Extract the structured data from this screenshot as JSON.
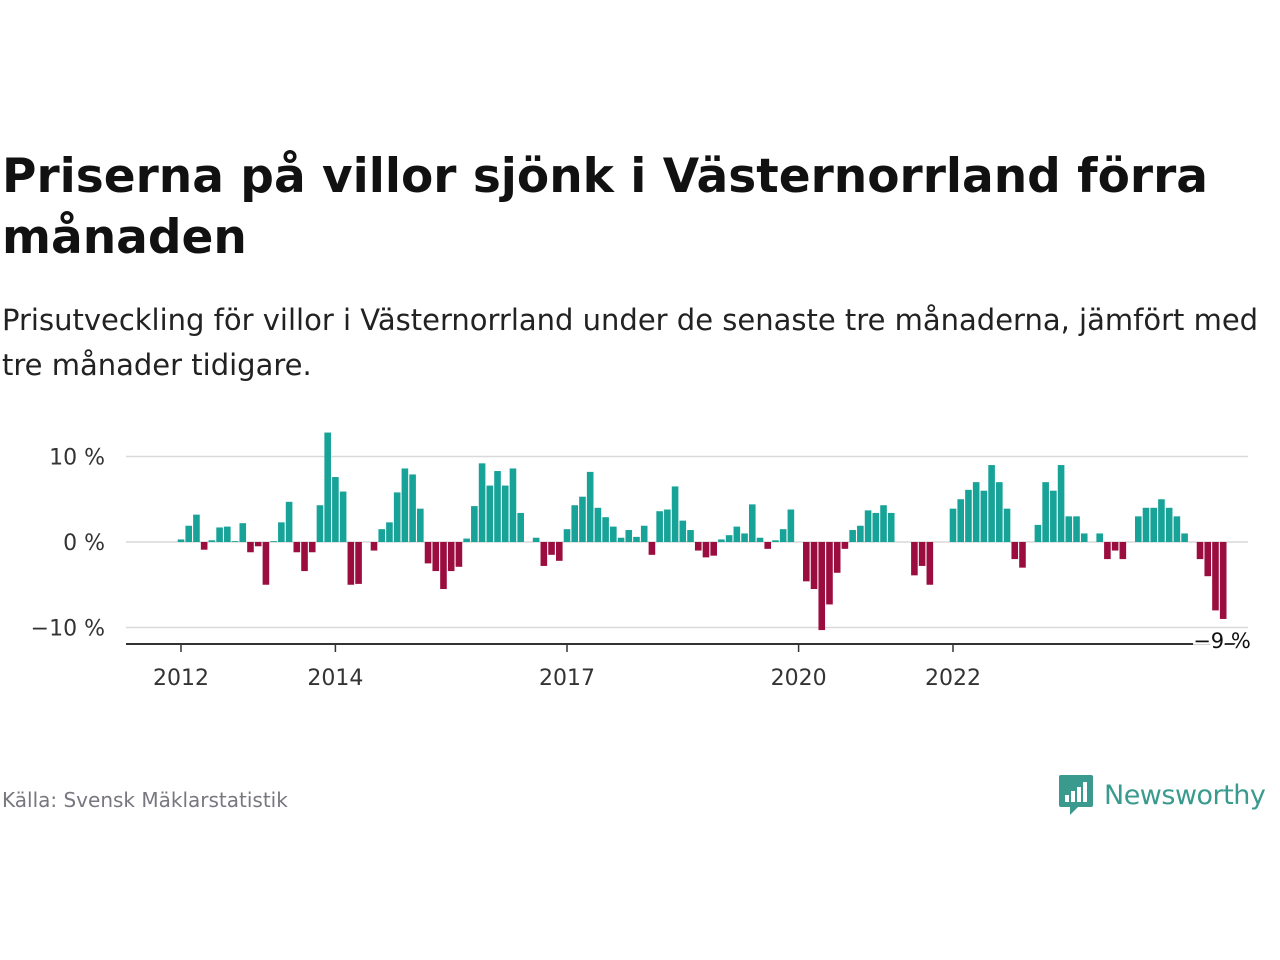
{
  "header": {
    "title": "Priserna på villor sjönk i Västernorrland förra månaden",
    "subtitle": "Prisutveckling för villor i Västernorrland under de senaste tre månaderna, jämfört med tre månader tidigare."
  },
  "footer": {
    "source": "Källa: Svensk Mäklarstatistik",
    "brand": "Newsworthy"
  },
  "colors": {
    "positive": "#17a398",
    "negative": "#9b0d3e",
    "grid": "#d9d9d9",
    "axis": "#333333",
    "brand": "#3a9a8e"
  },
  "chart_data": {
    "type": "bar",
    "title": "",
    "xlabel": "",
    "ylabel": "",
    "ylim": [
      -12,
      13.5
    ],
    "grid": true,
    "y_ticks": [
      {
        "value": 10,
        "label": "10 %"
      },
      {
        "value": 0,
        "label": "0 %"
      },
      {
        "value": -10,
        "label": "−10 %"
      }
    ],
    "x_ticks": [
      {
        "index": 0,
        "label": "2012"
      },
      {
        "index": 20,
        "label": "2014"
      },
      {
        "index": 50,
        "label": "2017"
      },
      {
        "index": 80,
        "label": "2020"
      },
      {
        "index": 100,
        "label": "2022"
      }
    ],
    "last_value_label": "−9 %",
    "values": [
      0.3,
      1.9,
      3.2,
      -0.9,
      0.2,
      1.7,
      1.8,
      0.1,
      2.2,
      -1.2,
      -0.5,
      -5.0,
      0.1,
      2.3,
      4.7,
      -1.2,
      -3.4,
      -1.2,
      4.3,
      12.8,
      7.6,
      5.9,
      -5.0,
      -4.9,
      0.0,
      -1.0,
      1.5,
      2.3,
      5.8,
      8.6,
      7.9,
      3.9,
      -2.5,
      -3.4,
      -5.5,
      -3.4,
      -2.9,
      0.4,
      4.2,
      9.2,
      6.6,
      8.3,
      6.6,
      8.6,
      3.4,
      0.0,
      0.5,
      -2.8,
      -1.5,
      -2.2,
      1.5,
      4.3,
      5.3,
      8.2,
      4.0,
      2.9,
      1.8,
      0.5,
      1.4,
      0.6,
      1.9,
      -1.5,
      3.6,
      3.8,
      6.5,
      2.5,
      1.4,
      -1.0,
      -1.8,
      -1.6,
      0.3,
      0.8,
      1.8,
      1.0,
      4.4,
      0.5,
      -0.8,
      0.2,
      1.5,
      3.8,
      0.0,
      -4.6,
      -5.5,
      -10.3,
      -7.3,
      -3.6,
      -0.8,
      1.4,
      1.9,
      3.7,
      3.4,
      4.3,
      3.4,
      0.0,
      0.0,
      -3.9,
      -2.8,
      -5.0,
      0.0,
      0.0,
      3.9,
      5.0,
      6.1,
      7.0,
      6.0,
      9.0,
      7.0,
      3.9,
      -2.0,
      -3.0,
      0.0,
      2.0,
      7.0,
      6.0,
      9.0,
      3.0,
      3.0,
      1.0,
      0.0,
      1.0,
      -2.0,
      -1.0,
      -2.0,
      0.0,
      3.0,
      4.0,
      4.0,
      5.0,
      4.0,
      3.0,
      1.0,
      0.0,
      -2.0,
      -4.0,
      -8.0,
      -9.0
    ]
  }
}
